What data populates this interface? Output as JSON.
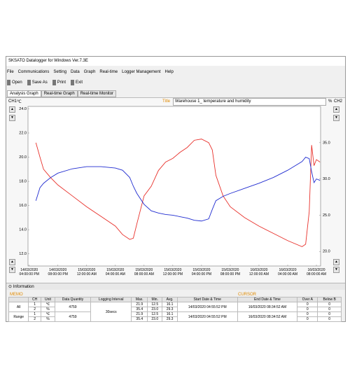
{
  "window": {
    "title": "SKSATO Datalogger for Windows Ver.7.3E",
    "menu": [
      "File",
      "Communications",
      "Setting",
      "Data",
      "Graph",
      "Real-time",
      "Logger Management",
      "Help"
    ],
    "toolbar": [
      "Open",
      "Save As",
      "Print",
      "Exit"
    ],
    "tabs": [
      "Analysis Graph",
      "Real-time Graph",
      "Real-time Monitor"
    ]
  },
  "chart_header": {
    "ch1": "CH1",
    "unit1": "℃",
    "title_label": "Title",
    "unit2": "%",
    "ch2": "CH2"
  },
  "chart_data": {
    "type": "line",
    "title": "Warehouse 1_ temperature and humidity",
    "x": [
      "14/03/2020 04:56:00 PM",
      "14/03/2020 05:30:00 PM",
      "14/03/2020 06:00:00 PM",
      "14/03/2020 07:00:00 PM",
      "14/03/2020 08:00:00 PM",
      "14/03/2020 10:00:00 PM",
      "15/03/2020 12:00:00 AM",
      "15/03/2020 02:00:00 AM",
      "15/03/2020 04:00:00 AM",
      "15/03/2020 05:00:00 AM",
      "15/03/2020 06:00:00 AM",
      "15/03/2020 06:30:00 AM",
      "15/03/2020 07:00:00 AM",
      "15/03/2020 08:00:00 AM",
      "15/03/2020 09:00:00 AM",
      "15/03/2020 10:00:00 AM",
      "15/03/2020 11:00:00 AM",
      "15/03/2020 12:00:00 PM",
      "15/03/2020 01:00:00 PM",
      "15/03/2020 02:00:00 PM",
      "15/03/2020 03:00:00 PM",
      "15/03/2020 04:00:00 PM",
      "15/03/2020 05:00:00 PM",
      "15/03/2020 05:30:00 PM",
      "15/03/2020 06:00:00 PM",
      "15/03/2020 07:00:00 PM",
      "15/03/2020 08:00:00 PM",
      "15/03/2020 10:00:00 PM",
      "16/03/2020 12:00:00 AM",
      "16/03/2020 02:00:00 AM",
      "16/03/2020 04:00:00 AM",
      "16/03/2020 06:00:00 AM",
      "16/03/2020 06:30:00 AM",
      "16/03/2020 07:00:00 AM",
      "16/03/2020 07:20:00 AM",
      "16/03/2020 07:40:00 AM",
      "16/03/2020 08:00:00 AM",
      "16/03/2020 08:30:00 AM"
    ],
    "series": [
      {
        "color": "#e8302a",
        "values": [
          21.2,
          20.0,
          19.0,
          18.3,
          17.7,
          16.8,
          15.9,
          15.1,
          14.3,
          13.6,
          13.2,
          13.3,
          14.5,
          16.8,
          17.6,
          18.9,
          19.6,
          19.9,
          20.4,
          20.8,
          21.4,
          21.5,
          21.2,
          20.6,
          18.5,
          16.8,
          15.9,
          15.0,
          14.3,
          13.7,
          13.1,
          12.6,
          12.8,
          15.5,
          21.0,
          19.3,
          19.8,
          19.6
        ]
      },
      {
        "color": "#1f2bd0",
        "axis": "y2",
        "values": [
          27.0,
          28.8,
          29.4,
          30.2,
          30.8,
          31.4,
          31.7,
          31.7,
          31.5,
          31.2,
          30.2,
          29.0,
          28.0,
          26.5,
          25.6,
          25.3,
          25.1,
          25.0,
          24.8,
          24.6,
          24.3,
          24.2,
          24.5,
          25.8,
          27.0,
          27.6,
          28.0,
          28.7,
          29.4,
          30.2,
          31.2,
          32.4,
          33.0,
          32.8,
          31.0,
          29.5,
          30.0,
          29.8
        ]
      }
    ],
    "xlim": [
      "14/03/2020 03:50:00 PM",
      "16/03/2020 08:35:00 AM"
    ],
    "xticks": [
      "14/03/2020 04:00:00 PM",
      "14/03/2020 08:00:00 PM",
      "15/03/2020 12:00:00 AM",
      "15/03/2020 04:00:00 AM",
      "15/03/2020 08:00:00 AM",
      "15/03/2020 12:00:00 PM",
      "15/03/2020 04:00:00 PM",
      "15/03/2020 08:00:00 PM",
      "16/03/2020 12:00:00 AM",
      "16/03/2020 04:00:00 AM",
      "16/03/2020 08:00:00 AM"
    ],
    "ylim": [
      11,
      24.2
    ],
    "yticks": [
      {
        "value": 12,
        "label": "12.0"
      },
      {
        "value": 14,
        "label": "14.0"
      },
      {
        "value": 16,
        "label": "16.0"
      },
      {
        "value": 18,
        "label": "18.0"
      },
      {
        "value": 20,
        "label": "20.0"
      },
      {
        "value": 22,
        "label": "22.0"
      },
      {
        "value": 24,
        "label": "24.0"
      }
    ],
    "y2lim": [
      18,
      40
    ],
    "y2ticks": [
      {
        "value": 20,
        "label": "20.0"
      },
      {
        "value": 25,
        "label": "25.0"
      },
      {
        "value": 30,
        "label": "30.0"
      },
      {
        "value": 35,
        "label": "35.0"
      }
    ],
    "grid": false
  },
  "info": {
    "title": "Information",
    "memo": "MEMO",
    "cursor": "CURSOR",
    "columns": [
      "CH",
      "Unit",
      "Data Quantity",
      "Logging Interval",
      "Max.",
      "Min.",
      "Avg.",
      "Start Date & Time",
      "End Date & Time",
      "Over A",
      "Below B"
    ],
    "interval": "30secs",
    "groups": [
      {
        "label": "All",
        "quantity": "4759",
        "start": "14/03/2020 04:55:52 PM",
        "end": "16/03/2020 08:34:52 AM",
        "rows": [
          [
            "1",
            "℃",
            "21.9",
            "12.5",
            "16.1",
            "0",
            "0"
          ],
          [
            "2",
            "%",
            "35.4",
            "23.0",
            "29.3",
            "0",
            "0"
          ]
        ]
      },
      {
        "label": "Range",
        "quantity": "4759",
        "start": "14/03/2020 04:55:52 PM",
        "end": "16/03/2020 08:34:52 AM",
        "rows": [
          [
            "1",
            "℃",
            "21.9",
            "12.5",
            "16.1",
            "0",
            "0"
          ],
          [
            "2",
            "%",
            "35.4",
            "23.0",
            "29.3",
            "0",
            "0"
          ]
        ]
      }
    ]
  }
}
